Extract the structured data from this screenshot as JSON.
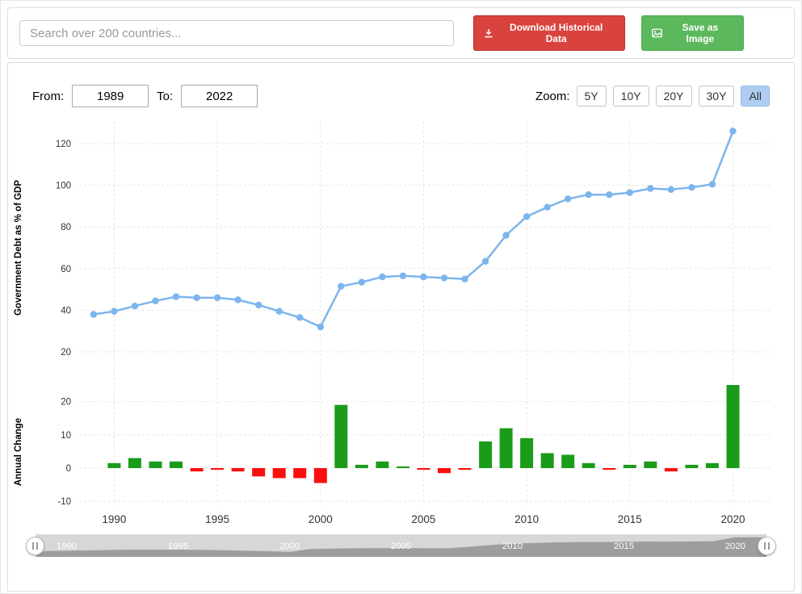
{
  "toolbar": {
    "search_placeholder": "Search over 200 countries...",
    "download_button": "Download Historical Data",
    "save_image_button": "Save as Image"
  },
  "range": {
    "from_label": "From:",
    "from_value": "1989",
    "to_label": "To:",
    "to_value": "2022"
  },
  "zoom": {
    "label": "Zoom:",
    "options": [
      "5Y",
      "10Y",
      "20Y",
      "30Y",
      "All"
    ],
    "selected": "All"
  },
  "colors": {
    "line": "#7cb5ec",
    "bar_positive": "#1a9c1a",
    "bar_negative": "#fb0e0e",
    "grid": "#e6e6e6",
    "download_button_bg": "#d9433e",
    "save_button_bg": "#5cb85c",
    "zoom_selected_bg": "#aecdf0"
  },
  "chart_data": [
    {
      "type": "line",
      "title": "",
      "ylabel": "Government Debt as % of GDP",
      "xlabel": "",
      "grid": true,
      "ylim": [
        15,
        135
      ],
      "yticks": [
        20,
        40,
        60,
        80,
        100,
        120
      ],
      "xticks": [
        1990,
        1995,
        2000,
        2005,
        2010,
        2015,
        2020
      ],
      "x": [
        1989,
        1990,
        1991,
        1992,
        1993,
        1994,
        1995,
        1996,
        1997,
        1998,
        1999,
        2000,
        2001,
        2002,
        2003,
        2004,
        2005,
        2006,
        2007,
        2008,
        2009,
        2010,
        2011,
        2012,
        2013,
        2014,
        2015,
        2016,
        2017,
        2018,
        2019,
        2020
      ],
      "values": [
        38,
        39.5,
        42,
        44.5,
        46.5,
        46,
        46,
        45,
        42.5,
        39.5,
        36.5,
        32,
        51.5,
        53.5,
        56,
        56.5,
        56,
        55.5,
        55,
        63.5,
        76,
        85,
        89.5,
        93.5,
        95.5,
        95.5,
        96.5,
        98.5,
        98,
        99,
        100.5,
        126
      ]
    },
    {
      "type": "bar",
      "title": "",
      "ylabel": "Annual Change",
      "xlabel": "",
      "grid": true,
      "ylim": [
        -12,
        28
      ],
      "yticks": [
        -10,
        0,
        10,
        20
      ],
      "xticks": [
        1990,
        1995,
        2000,
        2005,
        2010,
        2015,
        2020
      ],
      "x": [
        1990,
        1991,
        1992,
        1993,
        1994,
        1995,
        1996,
        1997,
        1998,
        1999,
        2000,
        2001,
        2002,
        2003,
        2004,
        2005,
        2006,
        2007,
        2008,
        2009,
        2010,
        2011,
        2012,
        2013,
        2014,
        2015,
        2016,
        2017,
        2018,
        2019,
        2020
      ],
      "values": [
        1.5,
        3,
        2,
        2,
        -1,
        -0.5,
        -1,
        -2.5,
        -3,
        -3,
        -4.5,
        19,
        1,
        2,
        0.5,
        -0.5,
        -1.5,
        -0.5,
        8,
        12,
        9,
        4.5,
        4,
        1.5,
        -0.5,
        1,
        2,
        -1,
        1,
        1.5,
        25
      ]
    }
  ],
  "navigator": {
    "labels": [
      "1990",
      "1995",
      "2000",
      "2005",
      "2010",
      "2015",
      "2020"
    ]
  }
}
